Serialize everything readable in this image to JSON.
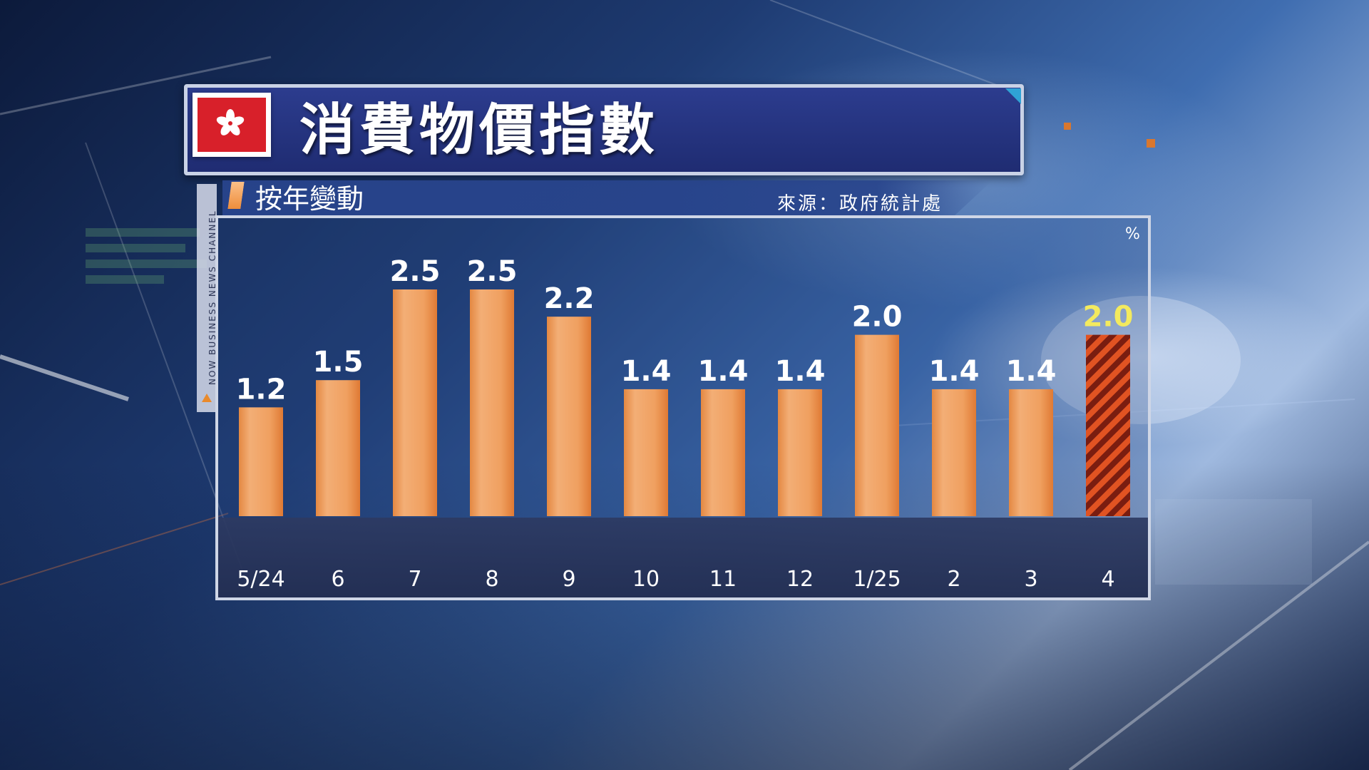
{
  "title": "消費物價指數",
  "subtitle": "按年變動",
  "source": "來源：政府統計處",
  "unit": "%",
  "side_label": "NOW BUSINESS NEWS CHANNEL",
  "colors": {
    "bar": "#f0a060",
    "bar_dark": "#e07a30",
    "highlight_label": "#f3ea5e",
    "highlight_stripe_a": "#e15322",
    "highlight_stripe_b": "#7a1d10",
    "title_bg": "#24327c"
  },
  "chart_data": {
    "type": "bar",
    "title": "消費物價指數",
    "subtitle": "按年變動",
    "ylabel": "%",
    "xlabel": "",
    "categories": [
      "5/24",
      "6",
      "7",
      "8",
      "9",
      "10",
      "11",
      "12",
      "1/25",
      "2",
      "3",
      "4"
    ],
    "values": [
      1.2,
      1.5,
      2.5,
      2.5,
      2.2,
      1.4,
      1.4,
      1.4,
      2.0,
      1.4,
      1.4,
      2.0
    ],
    "value_labels": [
      "1.2",
      "1.5",
      "2.5",
      "2.5",
      "2.2",
      "1.4",
      "1.4",
      "1.4",
      "2.0",
      "1.4",
      "1.4",
      "2.0"
    ],
    "highlight_index": 11,
    "ylim": [
      0,
      2.5
    ],
    "grid": false,
    "legend": "none"
  }
}
